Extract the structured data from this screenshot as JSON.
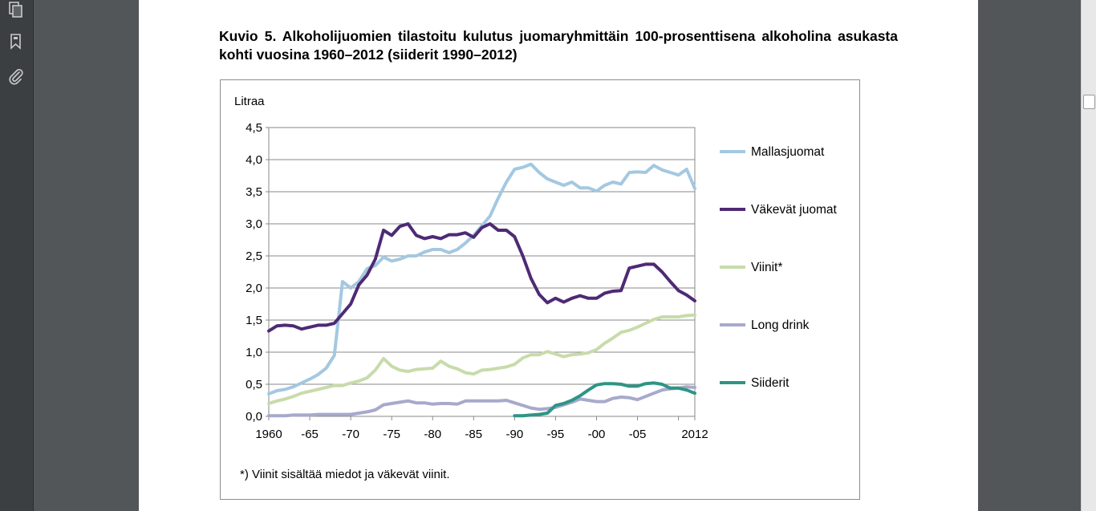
{
  "icons": [
    "pages-icon",
    "bookmark-icon",
    "attachment-icon"
  ],
  "document": {
    "title": "Kuvio 5. Alkoholijuomien tilastoitu kulutus juomaryhmittäin 100-prosenttisena alkoholina asukasta kohti vuosina 1960–2012 (siiderit 1990–2012)",
    "footnote": "*) Viinit sisältää miedot ja väkevät viinit."
  },
  "chart_data": {
    "type": "line",
    "ylabel": "Litraa",
    "ylim": [
      0,
      4.5
    ],
    "xlim": [
      1960,
      2012
    ],
    "y_tick_labels": [
      "0,0",
      "0,5",
      "1,0",
      "1,5",
      "2,0",
      "2,5",
      "3,0",
      "3,5",
      "4,0",
      "4,5"
    ],
    "x_tick_labels": [
      "1960",
      "-65",
      "-70",
      "-75",
      "-80",
      "-85",
      "-90",
      "-95",
      "-00",
      "-05",
      "2012"
    ],
    "x_tick_years": [
      1960,
      1965,
      1970,
      1975,
      1980,
      1985,
      1990,
      1995,
      2000,
      2005,
      2012
    ],
    "grid": "horizontal",
    "legend_position": "right",
    "series": [
      {
        "name": "Mallasjuomat",
        "color": "#a4c8e1",
        "x_start": 1960,
        "values": [
          0.35,
          0.4,
          0.42,
          0.46,
          0.52,
          0.58,
          0.65,
          0.75,
          0.95,
          2.1,
          2.0,
          2.1,
          2.3,
          2.35,
          2.48,
          2.42,
          2.45,
          2.5,
          2.5,
          2.56,
          2.6,
          2.6,
          2.55,
          2.6,
          2.7,
          2.82,
          2.97,
          3.12,
          3.4,
          3.65,
          3.85,
          3.88,
          3.93,
          3.8,
          3.7,
          3.65,
          3.6,
          3.65,
          3.56,
          3.56,
          3.51,
          3.6,
          3.65,
          3.62,
          3.8,
          3.81,
          3.8,
          3.91,
          3.84,
          3.8,
          3.76,
          3.85,
          3.55
        ]
      },
      {
        "name": "Väkevät juomat",
        "color": "#4e2a74",
        "x_start": 1960,
        "values": [
          1.33,
          1.41,
          1.42,
          1.41,
          1.36,
          1.39,
          1.42,
          1.42,
          1.45,
          1.6,
          1.75,
          2.05,
          2.2,
          2.45,
          2.9,
          2.82,
          2.96,
          3.0,
          2.82,
          2.77,
          2.8,
          2.77,
          2.83,
          2.83,
          2.86,
          2.79,
          2.94,
          3.0,
          2.9,
          2.9,
          2.8,
          2.5,
          2.15,
          1.9,
          1.77,
          1.84,
          1.78,
          1.84,
          1.88,
          1.84,
          1.84,
          1.92,
          1.95,
          1.96,
          2.31,
          2.34,
          2.37,
          2.37,
          2.25,
          2.1,
          1.96,
          1.89,
          1.8
        ]
      },
      {
        "name": "Viinit*",
        "color": "#c8dbaa",
        "x_start": 1960,
        "values": [
          0.2,
          0.24,
          0.27,
          0.31,
          0.36,
          0.39,
          0.42,
          0.45,
          0.48,
          0.48,
          0.52,
          0.55,
          0.6,
          0.72,
          0.9,
          0.78,
          0.72,
          0.7,
          0.73,
          0.74,
          0.75,
          0.86,
          0.78,
          0.74,
          0.68,
          0.66,
          0.72,
          0.73,
          0.75,
          0.77,
          0.81,
          0.91,
          0.96,
          0.96,
          1.01,
          0.97,
          0.93,
          0.96,
          0.97,
          0.99,
          1.04,
          1.14,
          1.22,
          1.31,
          1.34,
          1.39,
          1.45,
          1.51,
          1.55,
          1.55,
          1.55,
          1.57,
          1.58
        ]
      },
      {
        "name": "Long drink",
        "color": "#a7a9cc",
        "x_start": 1960,
        "values": [
          0.01,
          0.01,
          0.01,
          0.02,
          0.02,
          0.02,
          0.03,
          0.03,
          0.03,
          0.03,
          0.03,
          0.05,
          0.07,
          0.1,
          0.18,
          0.2,
          0.22,
          0.24,
          0.21,
          0.21,
          0.19,
          0.2,
          0.2,
          0.19,
          0.24,
          0.24,
          0.24,
          0.24,
          0.24,
          0.25,
          0.21,
          0.17,
          0.13,
          0.11,
          0.12,
          0.14,
          0.18,
          0.22,
          0.27,
          0.25,
          0.23,
          0.23,
          0.28,
          0.3,
          0.29,
          0.26,
          0.31,
          0.36,
          0.41,
          0.43,
          0.44,
          0.46,
          0.45
        ]
      },
      {
        "name": "Siiderit",
        "color": "#2e9584",
        "x_start": 1990,
        "values": [
          0.01,
          0.01,
          0.02,
          0.03,
          0.05,
          0.17,
          0.2,
          0.25,
          0.32,
          0.41,
          0.49,
          0.51,
          0.51,
          0.5,
          0.47,
          0.47,
          0.51,
          0.52,
          0.5,
          0.44,
          0.44,
          0.41,
          0.36
        ]
      }
    ]
  }
}
